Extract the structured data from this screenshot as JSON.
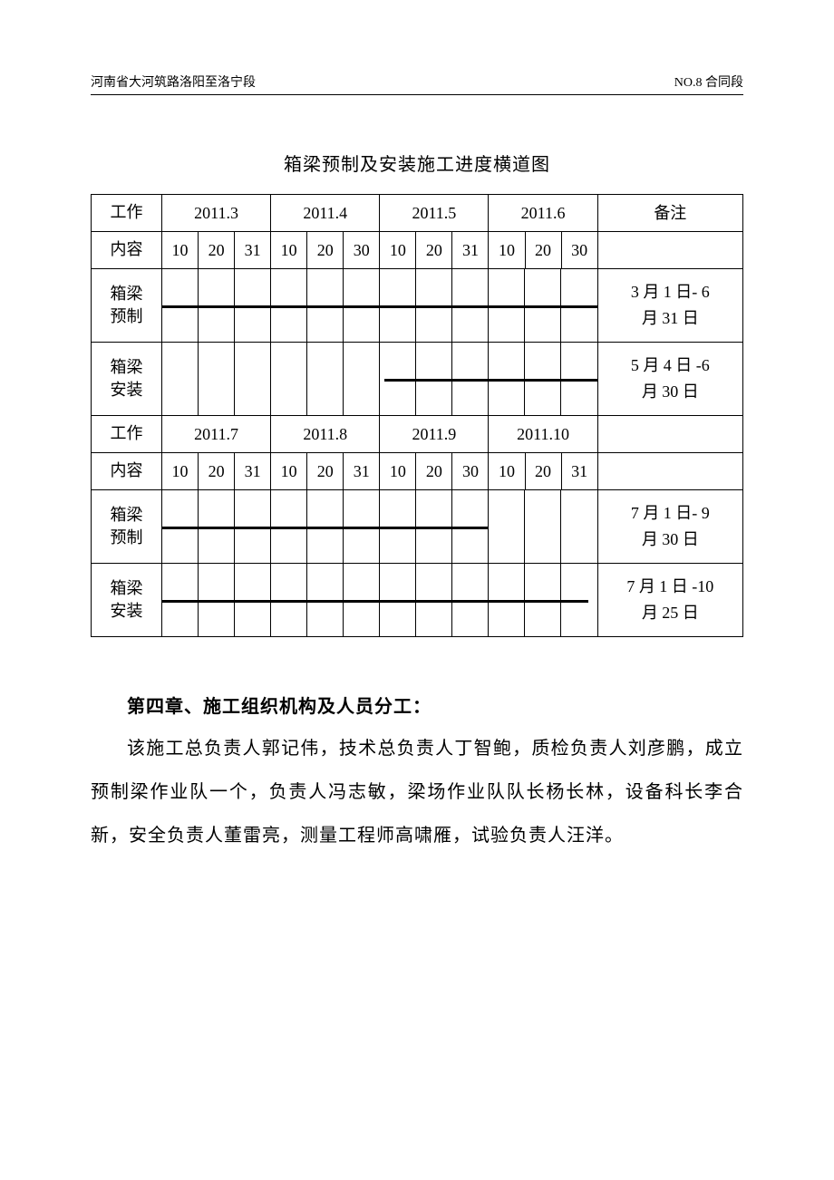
{
  "header": {
    "left": "河南省大河筑路洛阳至洛宁段",
    "right": "NO.8 合同段"
  },
  "chart": {
    "title": "箱梁预制及安装施工进度横道图",
    "col_work": "工作",
    "col_content": "内容",
    "col_note": "备注",
    "block1": {
      "months": [
        "2011.3",
        "2011.4",
        "2011.5",
        "2011.6"
      ],
      "days": [
        "10",
        "20",
        "31",
        "10",
        "20",
        "30",
        "10",
        "20",
        "31",
        "10",
        "20",
        "30"
      ],
      "rows": [
        {
          "label_top": "箱梁",
          "label_bottom": "预制",
          "note_top": "3 月 1 日- 6",
          "note_bottom": "月 31 日",
          "bar": {
            "left_pct": 0,
            "width_pct": 100
          }
        },
        {
          "label_top": "箱梁",
          "label_bottom": "安装",
          "note_top": "5 月 4 日 -6",
          "note_bottom": "月 30 日",
          "bar": {
            "left_pct": 51,
            "width_pct": 49
          }
        }
      ]
    },
    "block2": {
      "months": [
        "2011.7",
        "2011.8",
        "2011.9",
        "2011.10"
      ],
      "days": [
        "10",
        "20",
        "31",
        "10",
        "20",
        "31",
        "10",
        "20",
        "30",
        "10",
        "20",
        "31"
      ],
      "rows": [
        {
          "label_top": "箱梁",
          "label_bottom": "预制",
          "note_top": "7 月 1 日- 9",
          "note_bottom": "月 30 日",
          "bar": {
            "left_pct": 0,
            "width_pct": 75
          }
        },
        {
          "label_top": "箱梁",
          "label_bottom": "安装",
          "note_top": "7 月 1 日 -10",
          "note_bottom": "月 25 日",
          "bar": {
            "left_pct": 0,
            "width_pct": 98
          }
        }
      ]
    }
  },
  "section": {
    "heading": "第四章、施工组织机构及人员分工：",
    "body": "该施工总负责人郭记伟，技术总负责人丁智鲍，质检负责人刘彦鹏，成立预制梁作业队一个，负责人冯志敏，梁场作业队队长杨长林，设备科长李合新，安全负责人董雷亮，测量工程师高啸雁，试验负责人汪洋。"
  },
  "style": {
    "bar_color": "#000000",
    "border_color": "#000000",
    "background": "#ffffff",
    "body_fontsize": 20,
    "title_fontsize": 20,
    "header_fontsize": 14
  }
}
